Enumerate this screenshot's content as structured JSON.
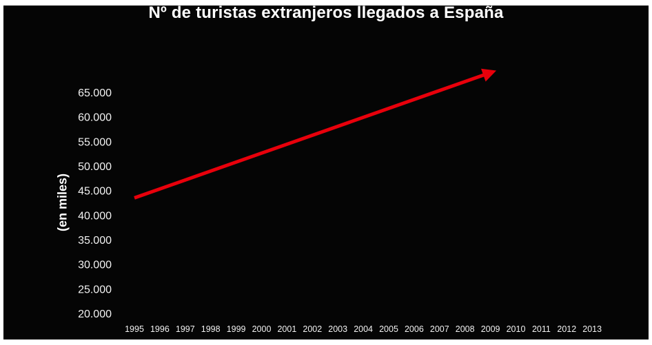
{
  "chart_data": {
    "type": "line",
    "title": "Nº de turistas extranjeros llegados a España",
    "xlabel": "",
    "ylabel": "(en miles)",
    "categories": [
      "1995",
      "1996",
      "1997",
      "1998",
      "1999",
      "2000",
      "2001",
      "2002",
      "2003",
      "2004",
      "2005",
      "2006",
      "2007",
      "2008",
      "2009",
      "2010",
      "2011",
      "2012",
      "2013"
    ],
    "y_ticks": [
      "20.000",
      "25.000",
      "30.000",
      "35.000",
      "40.000",
      "45.000",
      "50.000",
      "55.000",
      "60.000",
      "65.000"
    ],
    "ylim": [
      20000,
      65000
    ],
    "grid": false,
    "series": [
      {
        "x": [
          "1995",
          "2009"
        ],
        "values": [
          43500,
          69000
        ],
        "style": "arrow"
      }
    ],
    "colors": {
      "background": "#050505",
      "text": "#ffffff",
      "series": "#e8000b"
    }
  }
}
